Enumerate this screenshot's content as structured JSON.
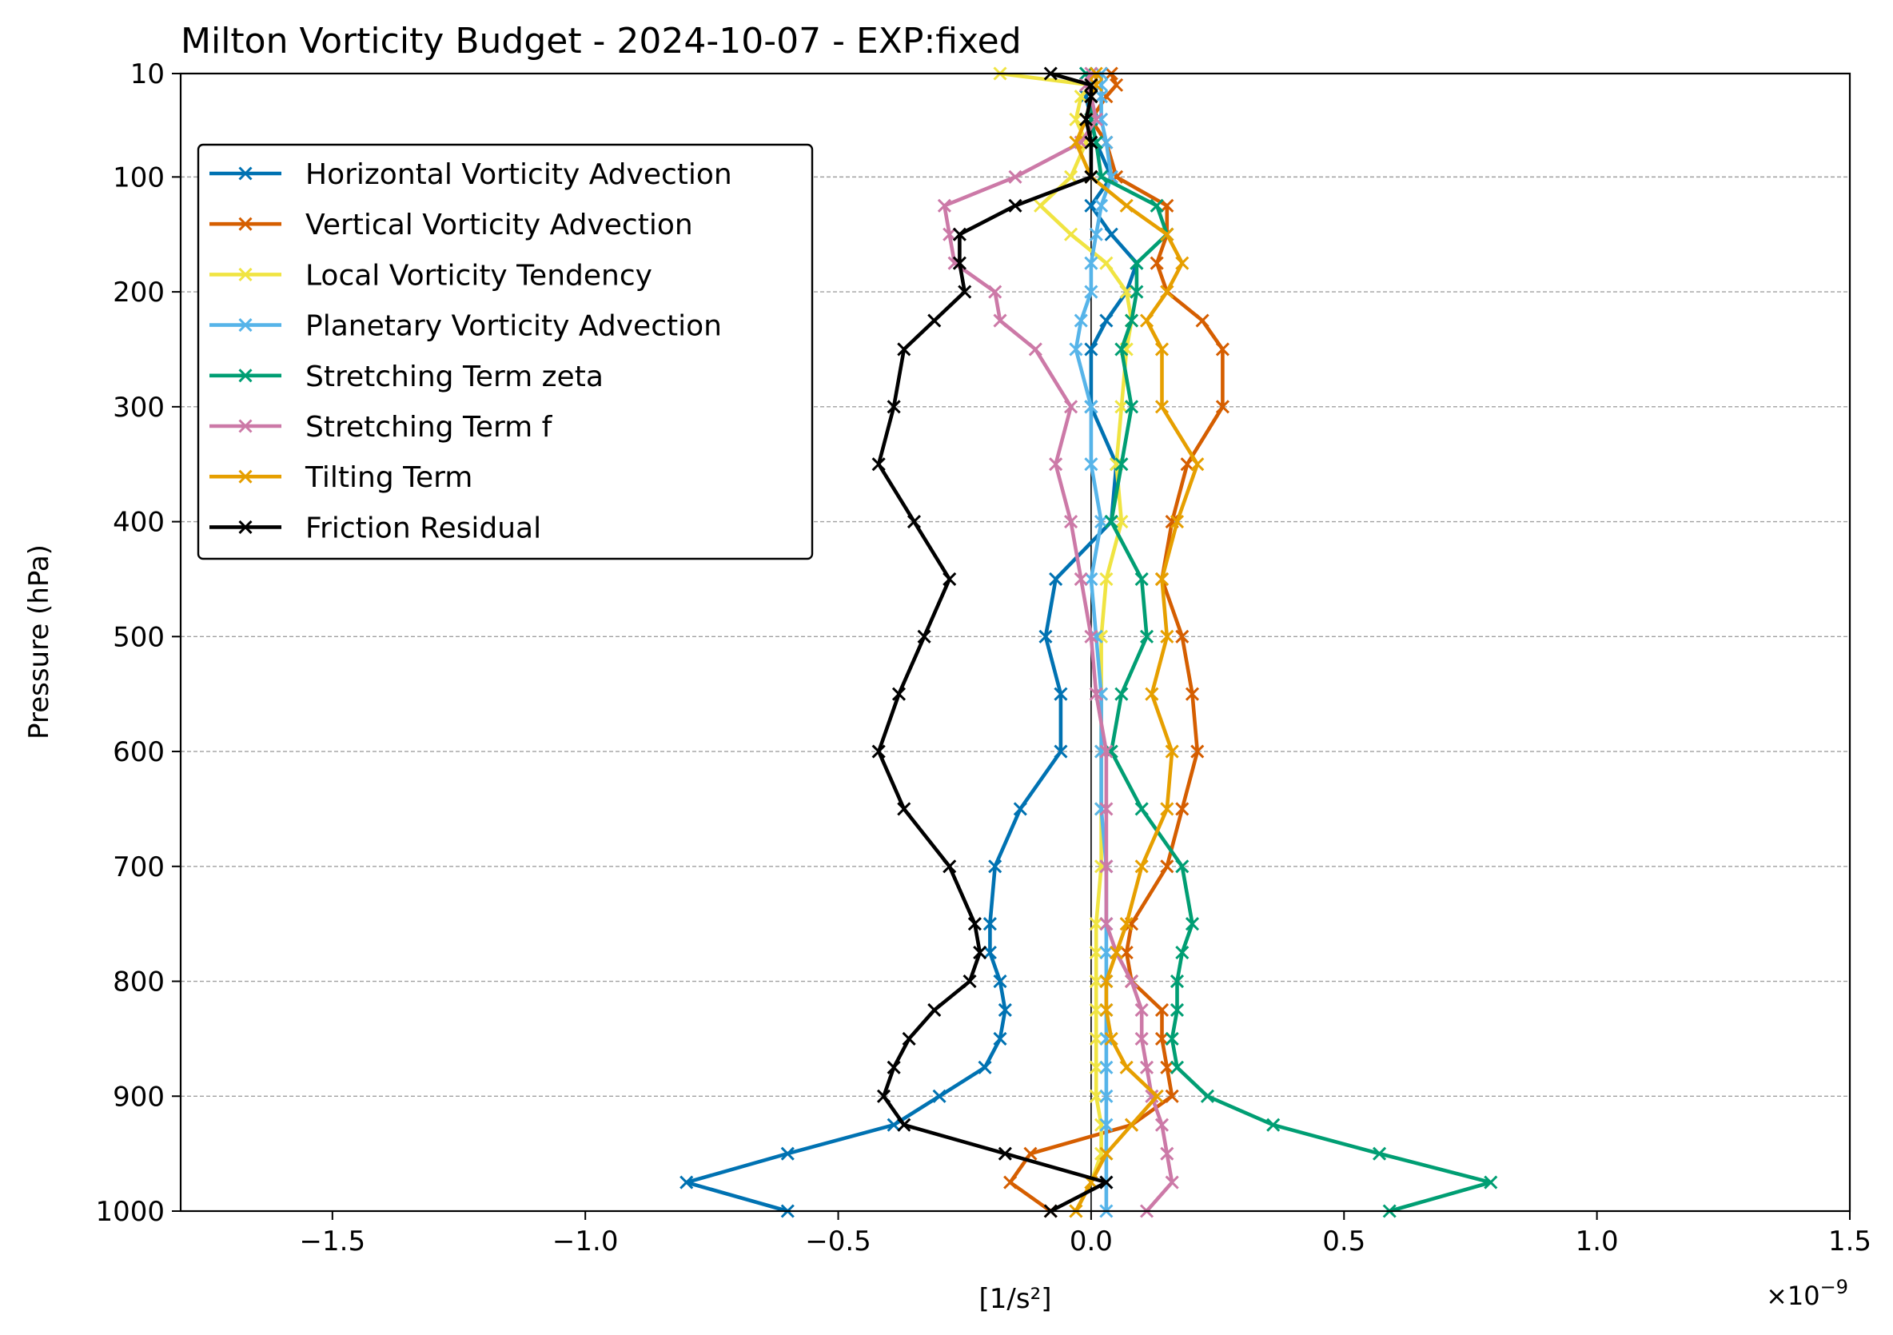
{
  "chart_data": {
    "type": "line",
    "title": "Milton Vorticity Budget - 2024-10-07 - EXP:fixed",
    "xlabel": "[1/s²]",
    "ylabel": "Pressure (hPa)",
    "x_scale_label": "×10",
    "x_scale_exponent": "−9",
    "xlim": [
      -1.8,
      1.5
    ],
    "ylim": [
      1000,
      10
    ],
    "y_inverted": true,
    "x_ticks": [
      -1.5,
      -1.0,
      -0.5,
      0.0,
      0.5,
      1.0,
      1.5
    ],
    "x_tick_labels": [
      "−1.5",
      "−1.0",
      "−0.5",
      "0.0",
      "0.5",
      "1.0",
      "1.5"
    ],
    "y_ticks": [
      10,
      100,
      200,
      300,
      400,
      500,
      600,
      700,
      800,
      900,
      1000
    ],
    "y_tick_labels": [
      "10",
      "100",
      "200",
      "300",
      "400",
      "500",
      "600",
      "700",
      "800",
      "900",
      "1000"
    ],
    "grid": "horizontal dashed at y ticks",
    "legend_position": "upper-left",
    "zero_line": true,
    "levels": [
      1000,
      975,
      950,
      925,
      900,
      875,
      850,
      825,
      800,
      775,
      750,
      700,
      650,
      600,
      550,
      500,
      450,
      400,
      350,
      300,
      250,
      225,
      200,
      175,
      150,
      125,
      100,
      70,
      50,
      30,
      20,
      10
    ],
    "series": [
      {
        "name": "Horizontal Vorticity Advection",
        "color": "#0072b2",
        "values": [
          -0.6,
          -0.8,
          -0.6,
          -0.39,
          -0.3,
          -0.21,
          -0.18,
          -0.17,
          -0.18,
          -0.2,
          -0.2,
          -0.19,
          -0.14,
          -0.06,
          -0.06,
          -0.09,
          -0.07,
          0.04,
          0.05,
          0.0,
          0.0,
          0.03,
          0.07,
          0.09,
          0.04,
          0.0,
          0.04,
          0.01,
          0.0,
          -0.01,
          0.0,
          -0.01
        ]
      },
      {
        "name": "Vertical Vorticity Advection",
        "color": "#d55e00",
        "values": [
          -0.08,
          -0.16,
          -0.12,
          0.08,
          0.16,
          0.15,
          0.14,
          0.14,
          0.08,
          0.07,
          0.08,
          0.15,
          0.18,
          0.21,
          0.2,
          0.18,
          0.14,
          0.16,
          0.19,
          0.26,
          0.26,
          0.22,
          0.15,
          0.13,
          0.15,
          0.15,
          0.05,
          0.03,
          0.0,
          0.03,
          0.05,
          0.04
        ]
      },
      {
        "name": "Local Vorticity Tendency",
        "color": "#f0e442",
        "values": [
          -0.03,
          0.0,
          0.02,
          0.02,
          0.01,
          0.01,
          0.01,
          0.01,
          0.01,
          0.01,
          0.01,
          0.02,
          0.02,
          0.02,
          0.02,
          0.02,
          0.03,
          0.06,
          0.05,
          0.06,
          0.07,
          0.08,
          0.07,
          0.03,
          -0.04,
          -0.1,
          -0.04,
          -0.01,
          -0.03,
          -0.02,
          0.0,
          -0.18
        ]
      },
      {
        "name": "Planetary Vorticity Advection",
        "color": "#56b4e9",
        "values": [
          0.03,
          0.03,
          0.03,
          0.03,
          0.03,
          0.03,
          0.03,
          0.03,
          0.03,
          0.03,
          0.03,
          0.03,
          0.02,
          0.02,
          0.02,
          0.01,
          0.0,
          0.02,
          0.0,
          0.0,
          -0.03,
          -0.02,
          0.0,
          0.0,
          0.01,
          0.02,
          0.04,
          0.03,
          0.02,
          0.02,
          0.02,
          0.02
        ]
      },
      {
        "name": "Stretching Term zeta",
        "color": "#009e73",
        "values": [
          0.59,
          0.79,
          0.57,
          0.36,
          0.23,
          0.17,
          0.16,
          0.17,
          0.17,
          0.18,
          0.2,
          0.18,
          0.1,
          0.04,
          0.06,
          0.11,
          0.1,
          0.04,
          0.06,
          0.08,
          0.06,
          0.08,
          0.09,
          0.09,
          0.15,
          0.13,
          0.02,
          0.01,
          0.0,
          0.0,
          0.0,
          -0.01
        ]
      },
      {
        "name": "Stretching Term f",
        "color": "#cc79a7",
        "values": [
          0.11,
          0.16,
          0.15,
          0.14,
          0.12,
          0.11,
          0.1,
          0.1,
          0.08,
          0.05,
          0.03,
          0.03,
          0.03,
          0.03,
          0.01,
          0.0,
          -0.02,
          -0.04,
          -0.07,
          -0.04,
          -0.11,
          -0.18,
          -0.19,
          -0.27,
          -0.28,
          -0.29,
          -0.15,
          -0.02,
          0.01,
          0.0,
          -0.01,
          0.0
        ]
      },
      {
        "name": "Tilting Term",
        "color": "#e69f00",
        "values": [
          -0.03,
          0.0,
          0.03,
          0.08,
          0.13,
          0.07,
          0.04,
          0.03,
          0.03,
          0.05,
          0.07,
          0.1,
          0.15,
          0.16,
          0.12,
          0.15,
          0.14,
          0.17,
          0.21,
          0.14,
          0.14,
          0.11,
          0.15,
          0.18,
          0.15,
          0.07,
          0.0,
          -0.03,
          -0.01,
          0.0,
          0.01,
          0.01
        ]
      },
      {
        "name": "Friction Residual",
        "color": "#000000",
        "values": [
          -0.08,
          0.03,
          -0.17,
          -0.37,
          -0.41,
          -0.39,
          -0.36,
          -0.31,
          -0.24,
          -0.22,
          -0.23,
          -0.28,
          -0.37,
          -0.42,
          -0.38,
          -0.33,
          -0.28,
          -0.35,
          -0.42,
          -0.39,
          -0.37,
          -0.31,
          -0.25,
          -0.26,
          -0.26,
          -0.15,
          0.0,
          0.0,
          -0.01,
          0.0,
          0.0,
          -0.08
        ]
      }
    ]
  }
}
